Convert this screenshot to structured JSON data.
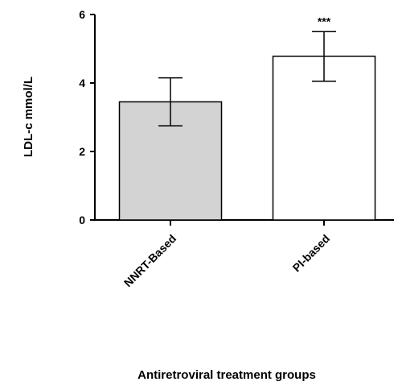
{
  "chart_data": {
    "type": "bar",
    "title": "",
    "xlabel": "Antiretroviral treatment groups",
    "ylabel": "LDL-c mmol/L",
    "ylim": [
      0,
      6
    ],
    "yticks": [
      0,
      2,
      4,
      6
    ],
    "ytick_labels": [
      "0",
      "2",
      "4",
      "6"
    ],
    "categories": [
      "NNRT-Based",
      "PI-based"
    ],
    "values": [
      3.45,
      4.78
    ],
    "error_low": [
      2.75,
      4.05
    ],
    "error_high": [
      4.15,
      5.5
    ],
    "annotations": [
      "",
      "***"
    ],
    "colors": [
      "#d3d3d3",
      "#ffffff"
    ],
    "grid": false,
    "legend": "none"
  }
}
